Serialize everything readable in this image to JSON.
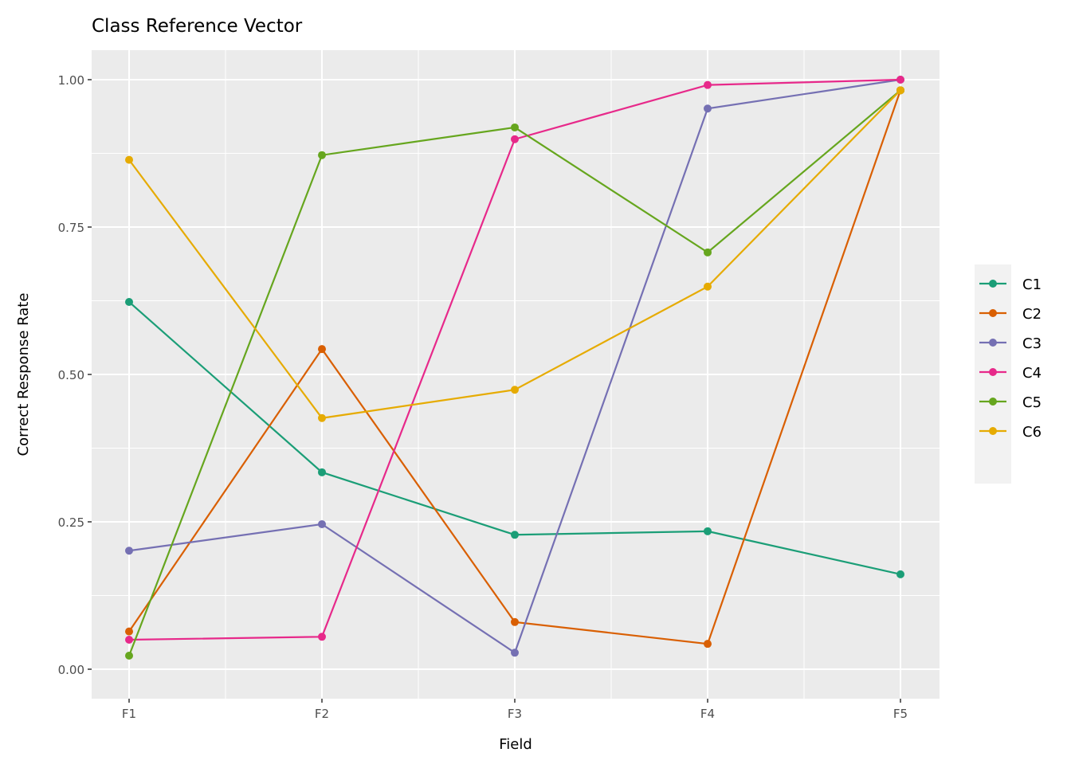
{
  "chart_data": {
    "type": "line",
    "title": "Class Reference Vector",
    "xlabel": "Field",
    "ylabel": "Correct Response Rate",
    "categories": [
      "F1",
      "F2",
      "F3",
      "F4",
      "F5"
    ],
    "ylim": [
      -0.05,
      1.05
    ],
    "yticks": [
      0,
      0.25,
      0.5,
      0.75,
      1
    ],
    "ytick_labels": [
      "0.00",
      "0.25",
      "0.50",
      "0.75",
      "1.00"
    ],
    "grid": true,
    "legend_position": "right",
    "series": [
      {
        "name": "C1",
        "color": "#1B9E77",
        "values": [
          0.623,
          0.334,
          0.228,
          0.234,
          0.161
        ]
      },
      {
        "name": "C2",
        "color": "#D95F02",
        "values": [
          0.064,
          0.543,
          0.08,
          0.043,
          0.982
        ]
      },
      {
        "name": "C3",
        "color": "#7570B3",
        "values": [
          0.201,
          0.246,
          0.028,
          0.951,
          1.0
        ]
      },
      {
        "name": "C4",
        "color": "#E7298A",
        "values": [
          0.05,
          0.055,
          0.899,
          0.991,
          1.0
        ]
      },
      {
        "name": "C5",
        "color": "#66A61E",
        "values": [
          0.023,
          0.872,
          0.919,
          0.707,
          0.982
        ]
      },
      {
        "name": "C6",
        "color": "#E6AB02",
        "values": [
          0.864,
          0.426,
          0.474,
          0.649,
          0.982
        ]
      }
    ]
  }
}
